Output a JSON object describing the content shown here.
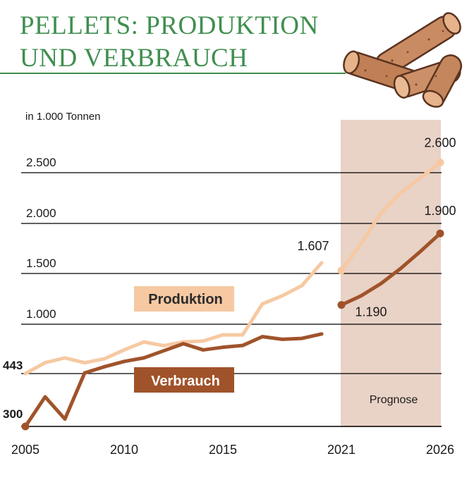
{
  "title": {
    "line1": "PELLETS: PRODUKTION",
    "line2": "UND VERBRAUCH"
  },
  "illustration": {
    "icon": "wood-pellets-illustration"
  },
  "colors": {
    "title": "#3f8f4f",
    "rule": "#3f8f4f",
    "produktion": "#f6c9a2",
    "verbrauch": "#a0532a",
    "forecast_band": "#e9d2c6",
    "gridline": "#000000",
    "text": "#1a1a1a"
  },
  "chart_data": {
    "type": "line",
    "unit_label": "in 1.000 Tonnen",
    "ylim": [
      300,
      2700
    ],
    "y_ticks": [
      {
        "value": 2500,
        "label": "2.500"
      },
      {
        "value": 2000,
        "label": "2.000"
      },
      {
        "value": 1500,
        "label": "1.500"
      },
      {
        "value": 1000,
        "label": "1.000"
      },
      {
        "value": 443,
        "label": "443"
      },
      {
        "value": 300,
        "label": "300"
      }
    ],
    "gridline_values": [
      2500,
      2000,
      1500,
      1000,
      443,
      300
    ],
    "xlim": [
      2005,
      2026
    ],
    "x_ticks": [
      {
        "value": 2005,
        "label": "2005"
      },
      {
        "value": 2010,
        "label": "2010"
      },
      {
        "value": 2015,
        "label": "2015"
      },
      {
        "value": 2021,
        "label": "2021"
      },
      {
        "value": 2026,
        "label": "2026"
      }
    ],
    "forecast": {
      "from": 2021,
      "to": 2026,
      "label": "Prognose"
    },
    "series": [
      {
        "name": "Produktion",
        "key": "produktion",
        "x": [
          2005,
          2006,
          2007,
          2008,
          2009,
          2010,
          2011,
          2012,
          2013,
          2014,
          2015,
          2016,
          2017,
          2018,
          2019,
          2020,
          2021,
          2022,
          2023,
          2024,
          2025,
          2026
        ],
        "values": [
          443,
          566,
          620,
          565,
          610,
          710,
          800,
          758,
          800,
          810,
          880,
          880,
          1200,
          1280,
          1380,
          1607,
          1530,
          1800,
          2100,
          2300,
          2450,
          2600
        ],
        "forecast_start_index": 16,
        "labels": [
          {
            "index": 0,
            "text": "443"
          },
          {
            "index": 15,
            "text": "1.607"
          },
          {
            "index": 21,
            "text": "2.600"
          }
        ]
      },
      {
        "name": "Verbrauch",
        "key": "verbrauch",
        "x": [
          2005,
          2006,
          2007,
          2008,
          2009,
          2010,
          2011,
          2012,
          2013,
          2014,
          2015,
          2016,
          2017,
          2018,
          2019,
          2020,
          2021,
          2022,
          2023,
          2024,
          2025,
          2026
        ],
        "values": [
          300,
          380,
          320,
          450,
          520,
          580,
          620,
          700,
          780,
          710,
          740,
          760,
          860,
          830,
          840,
          890,
          1190,
          1280,
          1400,
          1550,
          1720,
          1900
        ],
        "forecast_start_index": 16,
        "labels": [
          {
            "index": 16,
            "text": "1.190"
          },
          {
            "index": 21,
            "text": "1.900"
          }
        ]
      }
    ]
  }
}
